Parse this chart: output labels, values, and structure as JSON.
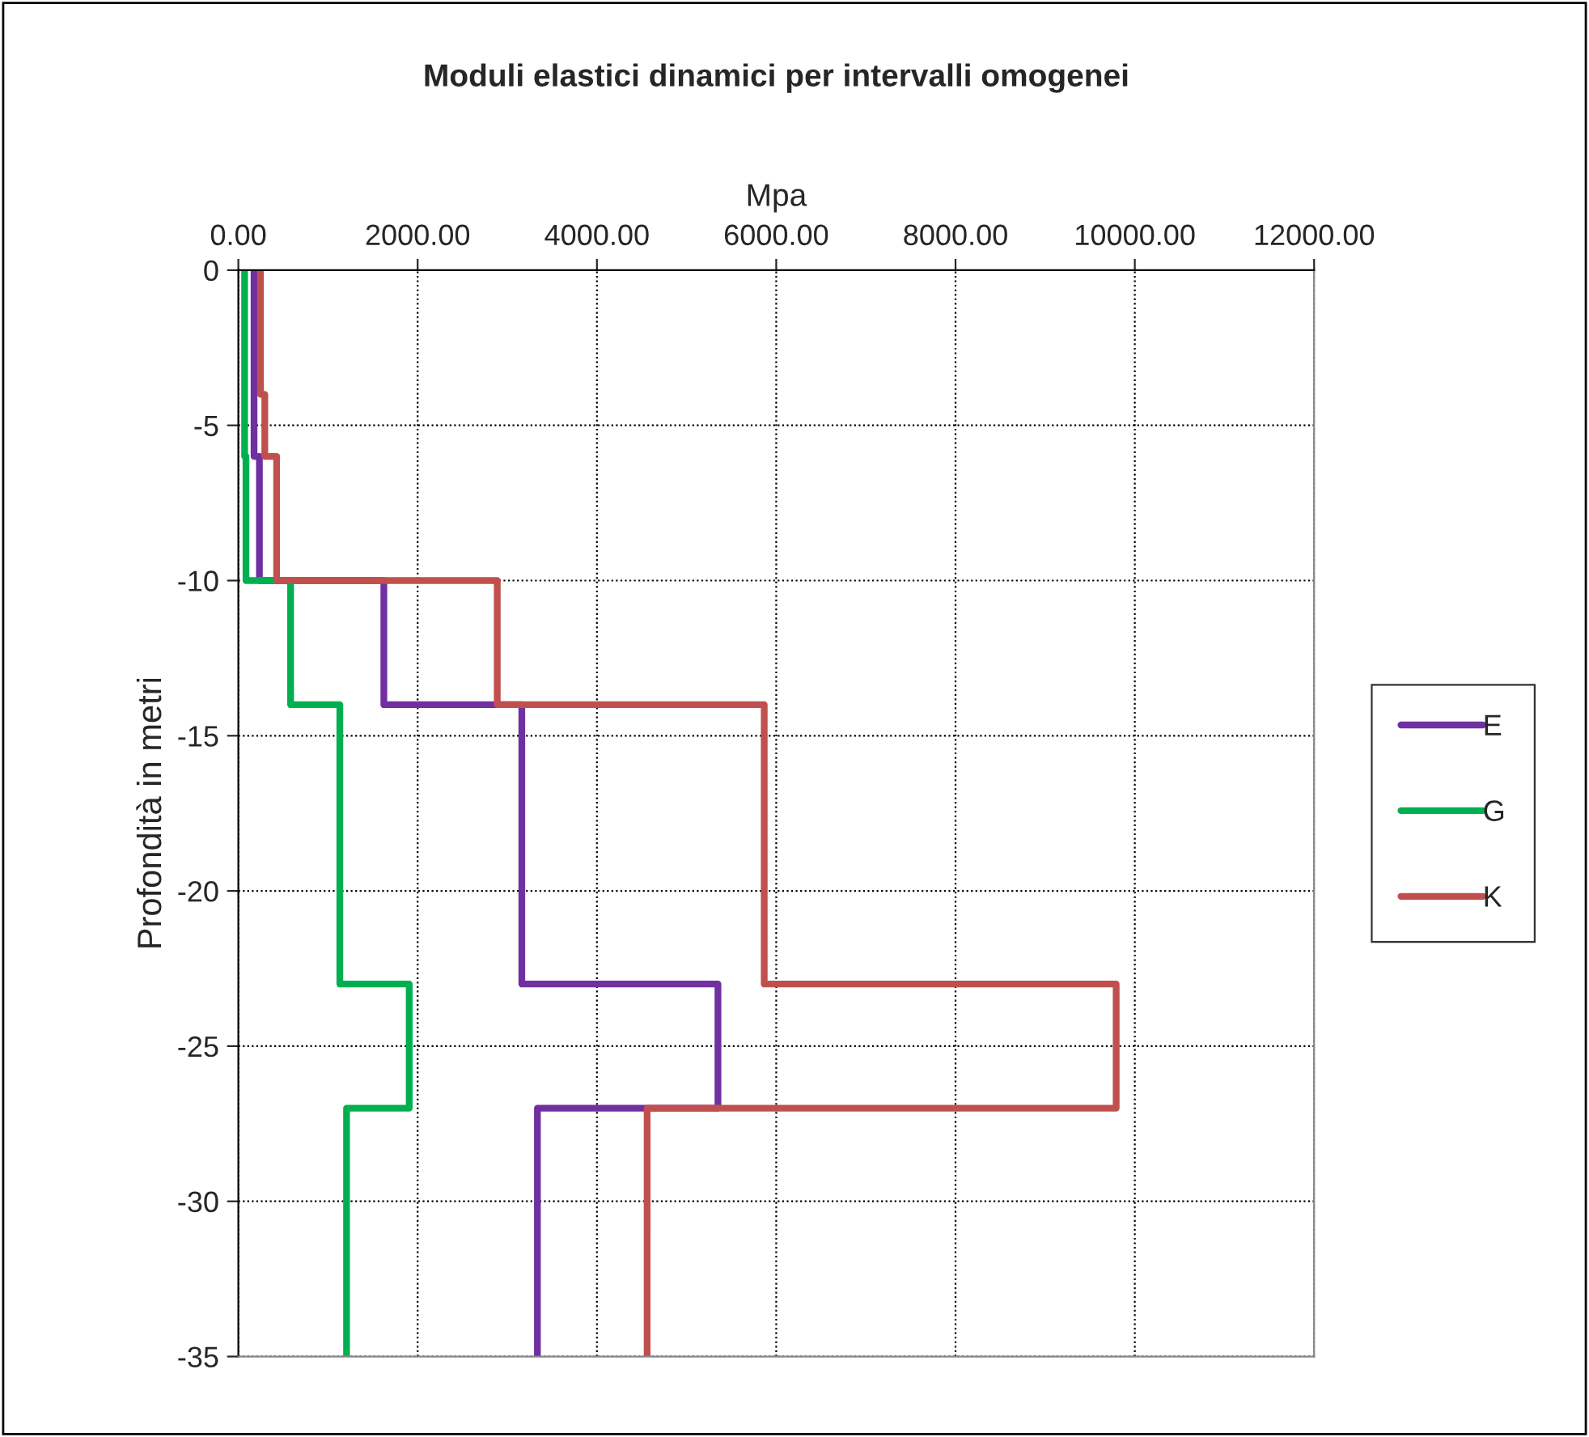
{
  "chart_data": {
    "type": "line",
    "title": "Moduli elastici dinamici per intervalli omogenei",
    "xlabel": "Mpa",
    "ylabel": "Profondità in metri",
    "series": [
      {
        "name": "E",
        "color": "#7030a0",
        "x": [
          175,
          175,
          235,
          235,
          1623,
          1623,
          3162,
          3162,
          5350,
          5350,
          3336,
          3336
        ],
        "values": [
          0,
          -6,
          -6,
          -10,
          -10,
          -14,
          -14,
          -23,
          -23,
          -27,
          -27,
          -35
        ]
      },
      {
        "name": "G",
        "color": "#00b050",
        "x": [
          70,
          70,
          85,
          85,
          583,
          583,
          1132,
          1132,
          1906,
          1906,
          1207,
          1207
        ],
        "values": [
          0,
          -6,
          -6,
          -10,
          -10,
          -14,
          -14,
          -23,
          -23,
          -27,
          -27,
          -35
        ]
      },
      {
        "name": "K",
        "color": "#c0504d",
        "x": [
          247,
          247,
          295,
          295,
          427,
          427,
          2888,
          2888,
          5866,
          5866,
          9792,
          9792,
          4560,
          4560
        ],
        "values": [
          0,
          -4,
          -4,
          -6,
          -6,
          -10,
          -10,
          -14,
          -14,
          -23,
          -23,
          -27,
          -27,
          -35
        ]
      }
    ],
    "xlim": [
      0,
      12000
    ],
    "xticks": [
      {
        "value": 0,
        "label": "0.00"
      },
      {
        "value": 2000,
        "label": "2000.00"
      },
      {
        "value": 4000,
        "label": "4000.00"
      },
      {
        "value": 6000,
        "label": "6000.00"
      },
      {
        "value": 8000,
        "label": "8000.00"
      },
      {
        "value": 10000,
        "label": "10000.00"
      },
      {
        "value": 12000,
        "label": "12000.00"
      }
    ],
    "ylim": [
      -35,
      0
    ],
    "yticks": [
      0,
      -5,
      -10,
      -15,
      -20,
      -25,
      -30,
      -35
    ],
    "grid": true,
    "legend": "right",
    "marker": "none",
    "line_style": "solid"
  }
}
